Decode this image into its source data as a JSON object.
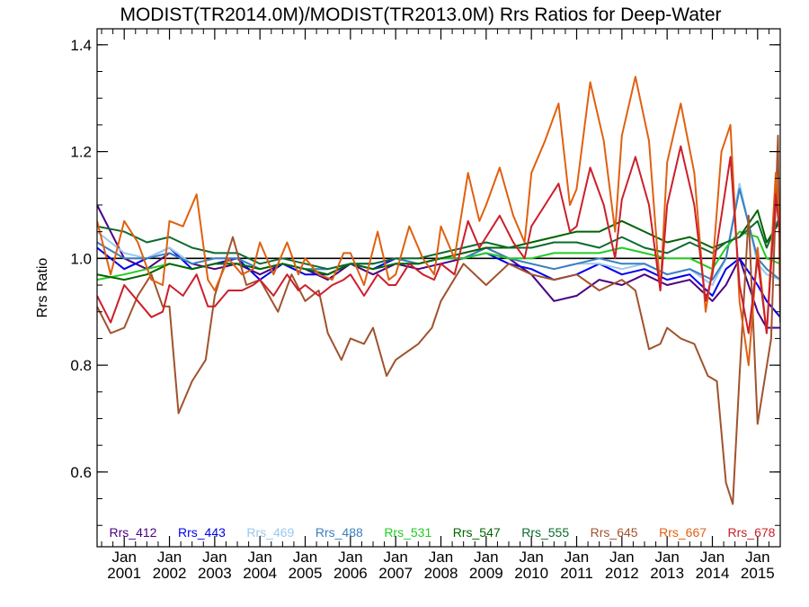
{
  "chart_data": {
    "type": "line",
    "title": "MODIST(TR2014.0M)/MODIST(TR2013.0M)  Rrs Ratios for Deep-Water",
    "ylabel": "Rrs Ratio",
    "xlabel": "",
    "xlim": [
      2000.4,
      2015.5
    ],
    "ylim": [
      0.46,
      1.43
    ],
    "yticks": [
      0.6,
      0.8,
      1.0,
      1.2,
      1.4
    ],
    "ytick_labels": [
      "0.6",
      "0.8",
      "1.0",
      "1.2",
      "1.4"
    ],
    "xticks": [
      {
        "value": 2001,
        "line1": "Jan",
        "line2": "2001"
      },
      {
        "value": 2002,
        "line1": "Jan",
        "line2": "2002"
      },
      {
        "value": 2003,
        "line1": "Jan",
        "line2": "2003"
      },
      {
        "value": 2004,
        "line1": "Jan",
        "line2": "2004"
      },
      {
        "value": 2005,
        "line1": "Jan",
        "line2": "2005"
      },
      {
        "value": 2006,
        "line1": "Jan",
        "line2": "2006"
      },
      {
        "value": 2007,
        "line1": "Jan",
        "line2": "2007"
      },
      {
        "value": 2008,
        "line1": "Jan",
        "line2": "2008"
      },
      {
        "value": 2009,
        "line1": "Jan",
        "line2": "2009"
      },
      {
        "value": 2010,
        "line1": "Jan",
        "line2": "2010"
      },
      {
        "value": 2011,
        "line1": "Jan",
        "line2": "2011"
      },
      {
        "value": 2012,
        "line1": "Jan",
        "line2": "2012"
      },
      {
        "value": 2013,
        "line1": "Jan",
        "line2": "2013"
      },
      {
        "value": 2014,
        "line1": "Jan",
        "line2": "2014"
      },
      {
        "value": 2015,
        "line1": "Jan",
        "line2": "2015"
      }
    ],
    "reference_line": 1.0,
    "legend_placement": "bottom-inside",
    "series": [
      {
        "name": "Rrs_412",
        "color": "#4b0082",
        "x": [
          2000.4,
          2001,
          2001.5,
          2002,
          2002.5,
          2003,
          2003.5,
          2004,
          2004.5,
          2005,
          2005.5,
          2006,
          2006.5,
          2007,
          2007.5,
          2008,
          2008.5,
          2009,
          2009.5,
          2010,
          2010.5,
          2011,
          2011.5,
          2012,
          2012.5,
          2013,
          2013.5,
          2014,
          2014.3,
          2014.6,
          2015,
          2015.2,
          2015.5
        ],
        "y": [
          1.1,
          1.0,
          0.98,
          1.01,
          0.99,
          0.98,
          0.99,
          0.97,
          0.99,
          0.98,
          0.96,
          0.99,
          0.97,
          0.99,
          0.98,
          0.99,
          1.0,
          1.02,
          1.0,
          0.97,
          0.92,
          0.93,
          0.96,
          0.95,
          0.97,
          0.95,
          0.96,
          0.92,
          0.95,
          1.0,
          0.9,
          0.87,
          0.87
        ]
      },
      {
        "name": "Rrs_443",
        "color": "#0000ee",
        "x": [
          2000.4,
          2001,
          2001.5,
          2002,
          2002.5,
          2003,
          2003.5,
          2004,
          2004.5,
          2005,
          2005.5,
          2006,
          2006.5,
          2007,
          2007.5,
          2008,
          2008.5,
          2009,
          2009.5,
          2010,
          2010.5,
          2011,
          2011.5,
          2012,
          2012.5,
          2013,
          2013.5,
          2014,
          2014.3,
          2014.6,
          2015,
          2015.2,
          2015.5
        ],
        "y": [
          1.02,
          0.98,
          1.0,
          1.02,
          0.98,
          0.99,
          1.0,
          0.96,
          0.99,
          0.97,
          0.97,
          0.99,
          0.98,
          1.0,
          0.99,
          1.0,
          1.0,
          1.01,
          0.99,
          0.98,
          0.96,
          0.97,
          0.99,
          0.97,
          0.98,
          0.96,
          0.97,
          0.93,
          0.98,
          1.0,
          0.95,
          0.92,
          0.89
        ]
      },
      {
        "name": "Rrs_469",
        "color": "#99c9ee",
        "x": [
          2000.4,
          2001,
          2001.5,
          2002,
          2002.5,
          2003,
          2003.5,
          2004,
          2004.5,
          2005,
          2005.5,
          2006,
          2006.5,
          2007,
          2007.5,
          2008,
          2008.5,
          2009,
          2009.5,
          2010,
          2010.5,
          2011,
          2011.5,
          2012,
          2012.5,
          2013,
          2013.5,
          2014,
          2014.3,
          2014.6,
          2015,
          2015.2,
          2015.5
        ],
        "y": [
          1.05,
          1.01,
          1.0,
          1.02,
          0.99,
          1.0,
          1.0,
          0.98,
          0.99,
          0.98,
          0.98,
          0.99,
          0.99,
          1.0,
          0.99,
          1.0,
          1.0,
          1.01,
          1.0,
          0.99,
          0.98,
          0.99,
          0.99,
          0.98,
          0.99,
          0.97,
          0.98,
          0.95,
          1.0,
          1.14,
          0.99,
          0.97,
          0.96
        ]
      },
      {
        "name": "Rrs_488",
        "color": "#3a7fc0",
        "x": [
          2000.4,
          2001,
          2001.5,
          2002,
          2002.5,
          2003,
          2003.5,
          2004,
          2004.5,
          2005,
          2005.5,
          2006,
          2006.5,
          2007,
          2007.5,
          2008,
          2008.5,
          2009,
          2009.5,
          2010,
          2010.5,
          2011,
          2011.5,
          2012,
          2012.5,
          2013,
          2013.5,
          2014,
          2014.3,
          2014.6,
          2015,
          2015.2,
          2015.5
        ],
        "y": [
          1.03,
          1.0,
          1.0,
          1.01,
          0.99,
          1.0,
          1.0,
          0.98,
          0.99,
          0.98,
          0.98,
          0.99,
          0.99,
          1.0,
          0.99,
          1.0,
          1.0,
          1.02,
          1.0,
          0.99,
          0.98,
          0.99,
          1.0,
          0.99,
          0.99,
          0.97,
          0.98,
          0.96,
          1.0,
          1.13,
          1.0,
          0.98,
          0.96
        ]
      },
      {
        "name": "Rrs_531",
        "color": "#22cc22",
        "x": [
          2000.4,
          2001,
          2001.5,
          2002,
          2002.5,
          2003,
          2003.5,
          2004,
          2004.5,
          2005,
          2005.5,
          2006,
          2006.5,
          2007,
          2007.5,
          2008,
          2008.5,
          2009,
          2009.5,
          2010,
          2010.5,
          2011,
          2011.5,
          2012,
          2012.5,
          2013,
          2013.5,
          2014,
          2014.3,
          2014.6,
          2015,
          2015.2,
          2015.5
        ],
        "y": [
          0.96,
          0.97,
          0.98,
          0.99,
          0.98,
          0.99,
          0.99,
          0.98,
          0.99,
          0.98,
          0.97,
          0.99,
          0.98,
          0.99,
          0.99,
          1.0,
          1.0,
          1.01,
          1.0,
          1.0,
          1.01,
          1.01,
          1.01,
          1.02,
          1.01,
          1.0,
          1.0,
          0.98,
          1.02,
          1.05,
          1.04,
          1.0,
          0.99
        ]
      },
      {
        "name": "Rrs_547",
        "color": "#006400",
        "x": [
          2000.4,
          2001,
          2001.5,
          2002,
          2002.5,
          2003,
          2003.5,
          2004,
          2004.5,
          2005,
          2005.5,
          2006,
          2006.5,
          2007,
          2007.5,
          2008,
          2008.5,
          2009,
          2009.5,
          2010,
          2010.5,
          2011,
          2011.5,
          2012,
          2012.5,
          2013,
          2013.5,
          2014,
          2014.3,
          2014.6,
          2015,
          2015.2,
          2015.5
        ],
        "y": [
          0.97,
          0.96,
          0.97,
          0.99,
          0.98,
          0.99,
          0.99,
          0.98,
          0.99,
          0.98,
          0.97,
          0.99,
          0.98,
          0.99,
          0.99,
          1.0,
          1.01,
          1.02,
          1.02,
          1.03,
          1.04,
          1.05,
          1.05,
          1.07,
          1.05,
          1.03,
          1.04,
          1.02,
          1.03,
          1.04,
          1.09,
          1.03,
          1.07
        ]
      },
      {
        "name": "Rrs_555",
        "color": "#0b6b2e",
        "x": [
          2000.4,
          2001,
          2001.5,
          2002,
          2002.5,
          2003,
          2003.5,
          2004,
          2004.5,
          2005,
          2005.5,
          2006,
          2006.5,
          2007,
          2007.5,
          2008,
          2008.5,
          2009,
          2009.5,
          2010,
          2010.5,
          2011,
          2011.5,
          2012,
          2012.5,
          2013,
          2013.5,
          2014,
          2014.3,
          2014.6,
          2015,
          2015.2,
          2015.5
        ],
        "y": [
          1.06,
          1.05,
          1.03,
          1.04,
          1.02,
          1.01,
          1.01,
          0.99,
          1.0,
          0.99,
          0.98,
          0.99,
          0.99,
          1.0,
          1.0,
          1.01,
          1.02,
          1.03,
          1.02,
          1.02,
          1.03,
          1.03,
          1.02,
          1.04,
          1.02,
          1.01,
          1.03,
          1.01,
          1.03,
          1.04,
          1.07,
          1.02,
          1.08
        ]
      },
      {
        "name": "Rrs_645",
        "color": "#a0522d",
        "x": [
          2000.4,
          2000.7,
          2001,
          2001.3,
          2001.6,
          2001.85,
          2002,
          2002.2,
          2002.5,
          2002.8,
          2003,
          2003.4,
          2003.7,
          2004,
          2004.4,
          2004.7,
          2005,
          2005.3,
          2005.5,
          2005.8,
          2006,
          2006.3,
          2006.5,
          2006.8,
          2007,
          2007.5,
          2007.8,
          2008,
          2008.5,
          2009,
          2009.5,
          2010,
          2010.5,
          2011,
          2011.5,
          2012,
          2012.3,
          2012.6,
          2012.85,
          2013,
          2013.3,
          2013.6,
          2013.9,
          2014.1,
          2014.3,
          2014.45,
          2014.6,
          2014.8,
          2015,
          2015.3,
          2015.45,
          2015.5
        ],
        "y": [
          0.91,
          0.86,
          0.87,
          0.93,
          0.97,
          0.91,
          0.91,
          0.71,
          0.77,
          0.81,
          0.93,
          1.04,
          0.95,
          0.96,
          0.9,
          0.97,
          0.92,
          0.94,
          0.86,
          0.81,
          0.85,
          0.84,
          0.87,
          0.78,
          0.81,
          0.84,
          0.87,
          0.92,
          0.99,
          0.95,
          0.99,
          0.97,
          0.96,
          0.97,
          0.94,
          0.96,
          0.94,
          0.83,
          0.84,
          0.87,
          0.85,
          0.84,
          0.78,
          0.77,
          0.58,
          0.54,
          0.78,
          1.08,
          0.69,
          0.85,
          1.23,
          0.88
        ]
      },
      {
        "name": "Rrs_667",
        "color": "#e06010",
        "x": [
          2000.4,
          2000.7,
          2001,
          2001.3,
          2001.6,
          2001.85,
          2002,
          2002.3,
          2002.6,
          2002.85,
          2003,
          2003.3,
          2003.6,
          2003.85,
          2004,
          2004.3,
          2004.6,
          2004.85,
          2005,
          2005.3,
          2005.6,
          2005.85,
          2006,
          2006.3,
          2006.6,
          2006.85,
          2007,
          2007.3,
          2007.6,
          2007.85,
          2008,
          2008.3,
          2008.6,
          2008.85,
          2009,
          2009.3,
          2009.6,
          2009.85,
          2010,
          2010.3,
          2010.6,
          2010.85,
          2011,
          2011.3,
          2011.6,
          2011.85,
          2012,
          2012.3,
          2012.6,
          2012.85,
          2013,
          2013.3,
          2013.6,
          2013.85,
          2014,
          2014.2,
          2014.4,
          2014.6,
          2014.8,
          2015,
          2015.2,
          2015.4,
          2015.5
        ],
        "y": [
          1.07,
          0.97,
          1.07,
          1.03,
          0.96,
          0.95,
          1.07,
          1.06,
          1.12,
          0.96,
          0.94,
          1.0,
          0.97,
          0.98,
          1.03,
          0.97,
          1.03,
          0.97,
          1.0,
          0.97,
          0.96,
          1.01,
          1.01,
          0.95,
          1.05,
          0.96,
          0.97,
          1.06,
          1.0,
          0.97,
          1.06,
          1.0,
          1.16,
          1.07,
          1.1,
          1.17,
          1.08,
          1.03,
          1.16,
          1.22,
          1.29,
          1.1,
          1.13,
          1.33,
          1.22,
          1.05,
          1.23,
          1.34,
          1.22,
          0.94,
          1.18,
          1.29,
          1.16,
          0.9,
          0.98,
          1.2,
          1.25,
          0.92,
          0.8,
          1.02,
          0.86,
          1.16,
          1.05
        ]
      },
      {
        "name": "Rrs_678",
        "color": "#cc1f2a",
        "x": [
          2000.4,
          2000.7,
          2001,
          2001.3,
          2001.6,
          2001.85,
          2002,
          2002.3,
          2002.6,
          2002.85,
          2003,
          2003.3,
          2003.6,
          2003.85,
          2004,
          2004.3,
          2004.6,
          2004.85,
          2005,
          2005.3,
          2005.6,
          2005.85,
          2006,
          2006.3,
          2006.6,
          2006.85,
          2007,
          2007.3,
          2007.6,
          2007.85,
          2008,
          2008.3,
          2008.6,
          2008.85,
          2009,
          2009.3,
          2009.6,
          2009.85,
          2010,
          2010.3,
          2010.6,
          2010.85,
          2011,
          2011.3,
          2011.6,
          2011.85,
          2012,
          2012.3,
          2012.6,
          2012.85,
          2013,
          2013.3,
          2013.6,
          2013.85,
          2014,
          2014.2,
          2014.4,
          2014.6,
          2014.8,
          2015,
          2015.2,
          2015.4,
          2015.5
        ],
        "y": [
          0.93,
          0.88,
          0.95,
          0.92,
          0.89,
          0.9,
          0.95,
          0.93,
          0.97,
          0.91,
          0.91,
          0.94,
          0.94,
          0.95,
          0.96,
          0.93,
          0.97,
          0.94,
          0.95,
          0.93,
          0.95,
          0.96,
          0.97,
          0.93,
          0.97,
          0.95,
          0.95,
          0.99,
          0.97,
          0.96,
          0.99,
          0.97,
          1.07,
          1.02,
          1.04,
          1.08,
          1.03,
          1.0,
          1.06,
          1.1,
          1.14,
          1.05,
          1.06,
          1.17,
          1.1,
          1.0,
          1.11,
          1.19,
          1.1,
          0.94,
          1.1,
          1.21,
          1.1,
          0.92,
          0.97,
          1.08,
          1.19,
          0.95,
          0.86,
          1.0,
          0.86,
          1.12,
          1.04
        ]
      }
    ]
  }
}
